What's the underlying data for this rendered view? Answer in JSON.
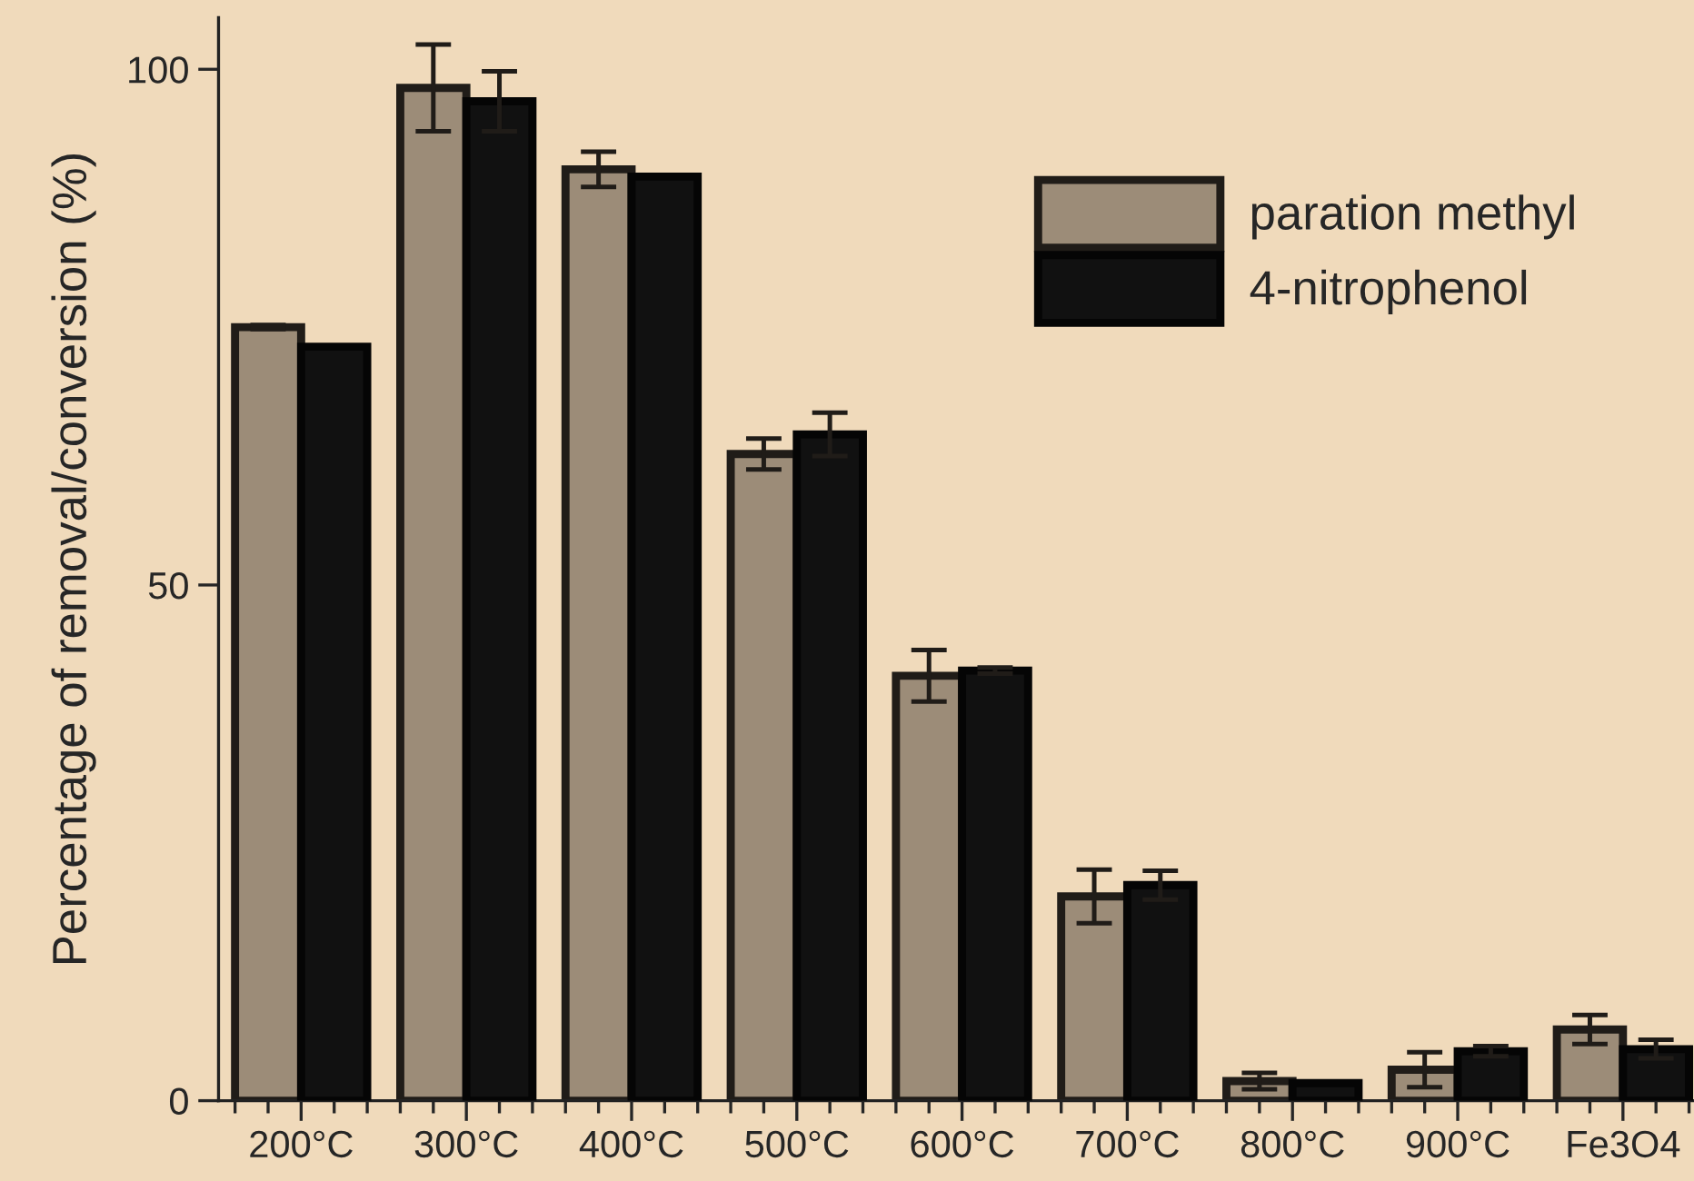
{
  "chart_data": {
    "type": "bar",
    "ylabel": "Percentage of removal/conversion (%)",
    "categories": [
      "200°C",
      "300°C",
      "400°C",
      "500°C",
      "600°C",
      "700°C",
      "800°C",
      "900°C",
      "Fe3O4"
    ],
    "series": [
      {
        "name": "paration methyl",
        "color": "#9c8c78",
        "values": [
          75,
          98.2,
          90.3,
          62.7,
          41.2,
          19.8,
          1.9,
          3.0,
          6.9
        ],
        "errors": [
          0.2,
          4.2,
          1.7,
          1.5,
          2.5,
          2.6,
          0.8,
          1.7,
          1.4
        ]
      },
      {
        "name": "4-nitrophenol",
        "color": "#111111",
        "values": [
          73.1,
          96.9,
          89.6,
          64.6,
          41.7,
          20.9,
          1.7,
          4.8,
          5.0
        ],
        "errors": [
          null,
          2.9,
          null,
          2.1,
          0.3,
          1.4,
          null,
          0.5,
          0.9
        ]
      }
    ],
    "ylim": [
      0,
      105
    ],
    "yticks": [
      0,
      50,
      100
    ],
    "grid": false,
    "legend": "top right"
  }
}
